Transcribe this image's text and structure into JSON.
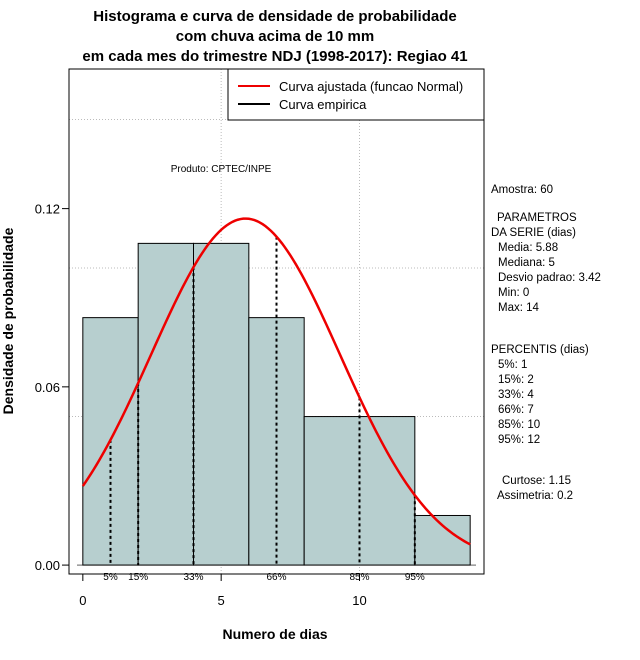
{
  "chart_data": {
    "type": "bar",
    "title_lines": [
      "Histograma e curva de densidade de probabilidade",
      "com chuva acima de 10 mm",
      "em cada mes do trimestre NDJ (1998-2017): Regiao 41"
    ],
    "xlabel": "Numero de dias",
    "ylabel": "Densidade de probabilidade",
    "xlim": [
      -0.5,
      14.5
    ],
    "ylim": [
      -0.003,
      0.167
    ],
    "x_ticks": [
      0,
      5,
      10
    ],
    "y_ticks": [
      0.0,
      0.06,
      0.12
    ],
    "y_tick_labels": [
      "0.00",
      "0.06",
      "0.12"
    ],
    "x_grid": [
      5,
      10
    ],
    "y_grid": [
      0.05,
      0.1,
      0.15
    ],
    "bins": [
      {
        "from": 0,
        "to": 2,
        "density": 0.0833
      },
      {
        "from": 2,
        "to": 4,
        "density": 0.1083
      },
      {
        "from": 4,
        "to": 6,
        "density": 0.1083
      },
      {
        "from": 6,
        "to": 8,
        "density": 0.0833
      },
      {
        "from": 8,
        "to": 12,
        "density": 0.05
      },
      {
        "from": 12,
        "to": 14,
        "density": 0.0167
      }
    ],
    "normal_fit": {
      "mean": 5.88,
      "sd": 3.42,
      "x_range": [
        0,
        14
      ]
    },
    "percentile_lines": [
      {
        "label": "5%",
        "x": 1
      },
      {
        "label": "15%",
        "x": 2
      },
      {
        "label": "33%",
        "x": 4
      },
      {
        "label": "66%",
        "x": 7
      },
      {
        "label": "85%",
        "x": 10
      },
      {
        "label": "95%",
        "x": 12
      }
    ],
    "legend": {
      "position": "top-right",
      "entries": [
        {
          "label": "Curva ajustada (funcao Normal)",
          "color": "#ee0000"
        },
        {
          "label": "Curva empirica",
          "color": "#000000"
        }
      ]
    },
    "product_label": "Produto: CPTEC/INPE",
    "bar_color": "#b7cfcf",
    "curve_color": "#ee0000",
    "grid": true
  },
  "stats": {
    "amostra": "Amostra: 60",
    "param_title_1": "PARAMETROS",
    "param_title_2": "DA SERIE (dias)",
    "media": "Media: 5.88",
    "mediana": "Mediana: 5",
    "desvio": "Desvio padrao: 3.42",
    "min": "Min: 0",
    "max": "Max: 14",
    "percentis_title": "PERCENTIS (dias)",
    "p5": "5%: 1",
    "p15": "15%: 2",
    "p33": "33%: 4",
    "p66": "66%: 7",
    "p85": "85%: 10",
    "p95": "95%: 12",
    "curtose": "Curtose: 1.15",
    "assimetria": "Assimetria: 0.2"
  }
}
